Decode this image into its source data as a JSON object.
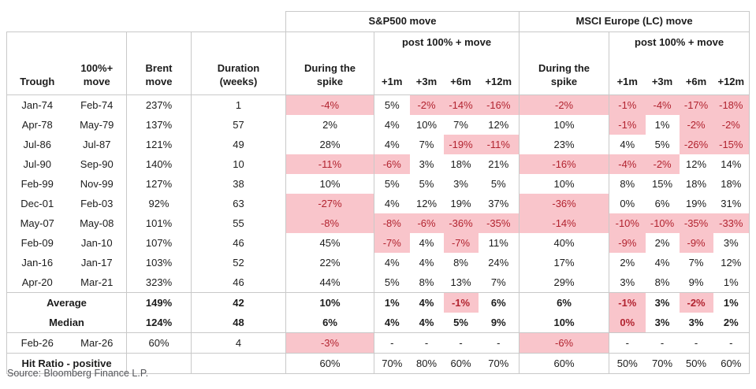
{
  "source": "Source: Bloomberg Finance L.P.",
  "colors": {
    "highlight_bg": "#f9c5cb",
    "highlight_text": "#b22430",
    "border": "#c9c9c9",
    "text": "#1c1c1c",
    "source_text": "#55565a"
  },
  "chart_data": {
    "type": "table",
    "groups": [
      "S&P500 move",
      "MSCI Europe (LC) move"
    ],
    "headers": {
      "trough": "Trough",
      "move": "100%+\nmove",
      "brent": "Brent\nmove",
      "duration": "Duration\n(weeks)",
      "during": "During the\nspike",
      "post": "post 100% + move",
      "horizons": [
        "+1m",
        "+3m",
        "+6m",
        "+12m"
      ]
    },
    "rows": [
      {
        "lead": [
          "Jan-74",
          "Feb-74"
        ],
        "cells": [
          {
            "v": "237%"
          },
          {
            "v": "1"
          },
          {
            "v": "-4%",
            "hl": true
          },
          {
            "v": "5%"
          },
          {
            "v": "-2%",
            "hl": true
          },
          {
            "v": "-14%",
            "hl": true
          },
          {
            "v": "-16%",
            "hl": true
          },
          {
            "v": "-2%",
            "hl": true
          },
          {
            "v": "-1%",
            "hl": true
          },
          {
            "v": "-4%",
            "hl": true
          },
          {
            "v": "-17%",
            "hl": true
          },
          {
            "v": "-18%",
            "hl": true
          }
        ]
      },
      {
        "lead": [
          "Apr-78",
          "May-79"
        ],
        "cells": [
          {
            "v": "137%"
          },
          {
            "v": "57"
          },
          {
            "v": "2%"
          },
          {
            "v": "4%"
          },
          {
            "v": "10%"
          },
          {
            "v": "7%"
          },
          {
            "v": "12%"
          },
          {
            "v": "10%"
          },
          {
            "v": "-1%",
            "hl": true
          },
          {
            "v": "1%"
          },
          {
            "v": "-2%",
            "hl": true
          },
          {
            "v": "-2%",
            "hl": true
          }
        ]
      },
      {
        "lead": [
          "Jul-86",
          "Jul-87"
        ],
        "cells": [
          {
            "v": "121%"
          },
          {
            "v": "49"
          },
          {
            "v": "28%"
          },
          {
            "v": "4%"
          },
          {
            "v": "7%"
          },
          {
            "v": "-19%",
            "hl": true
          },
          {
            "v": "-11%",
            "hl": true
          },
          {
            "v": "23%"
          },
          {
            "v": "4%"
          },
          {
            "v": "5%"
          },
          {
            "v": "-26%",
            "hl": true
          },
          {
            "v": "-15%",
            "hl": true
          }
        ]
      },
      {
        "lead": [
          "Jul-90",
          "Sep-90"
        ],
        "cells": [
          {
            "v": "140%"
          },
          {
            "v": "10"
          },
          {
            "v": "-11%",
            "hl": true
          },
          {
            "v": "-6%",
            "hl": true
          },
          {
            "v": "3%"
          },
          {
            "v": "18%"
          },
          {
            "v": "21%"
          },
          {
            "v": "-16%",
            "hl": true
          },
          {
            "v": "-4%",
            "hl": true
          },
          {
            "v": "-2%",
            "hl": true
          },
          {
            "v": "12%"
          },
          {
            "v": "14%"
          }
        ]
      },
      {
        "lead": [
          "Feb-99",
          "Nov-99"
        ],
        "cells": [
          {
            "v": "127%"
          },
          {
            "v": "38"
          },
          {
            "v": "10%"
          },
          {
            "v": "5%"
          },
          {
            "v": "5%"
          },
          {
            "v": "3%"
          },
          {
            "v": "5%"
          },
          {
            "v": "10%"
          },
          {
            "v": "8%"
          },
          {
            "v": "15%"
          },
          {
            "v": "18%"
          },
          {
            "v": "18%"
          }
        ]
      },
      {
        "lead": [
          "Dec-01",
          "Feb-03"
        ],
        "cells": [
          {
            "v": "92%"
          },
          {
            "v": "63"
          },
          {
            "v": "-27%",
            "hl": true
          },
          {
            "v": "4%"
          },
          {
            "v": "12%"
          },
          {
            "v": "19%"
          },
          {
            "v": "37%"
          },
          {
            "v": "-36%",
            "hl": true
          },
          {
            "v": "0%"
          },
          {
            "v": "6%"
          },
          {
            "v": "19%"
          },
          {
            "v": "31%"
          }
        ]
      },
      {
        "lead": [
          "May-07",
          "May-08"
        ],
        "cells": [
          {
            "v": "101%"
          },
          {
            "v": "55"
          },
          {
            "v": "-8%",
            "hl": true
          },
          {
            "v": "-8%",
            "hl": true
          },
          {
            "v": "-6%",
            "hl": true
          },
          {
            "v": "-36%",
            "hl": true
          },
          {
            "v": "-35%",
            "hl": true
          },
          {
            "v": "-14%",
            "hl": true
          },
          {
            "v": "-10%",
            "hl": true
          },
          {
            "v": "-10%",
            "hl": true
          },
          {
            "v": "-35%",
            "hl": true
          },
          {
            "v": "-33%",
            "hl": true
          }
        ]
      },
      {
        "lead": [
          "Feb-09",
          "Jan-10"
        ],
        "cells": [
          {
            "v": "107%"
          },
          {
            "v": "46"
          },
          {
            "v": "45%"
          },
          {
            "v": "-7%",
            "hl": true
          },
          {
            "v": "4%"
          },
          {
            "v": "-7%",
            "hl": true
          },
          {
            "v": "11%"
          },
          {
            "v": "40%"
          },
          {
            "v": "-9%",
            "hl": true
          },
          {
            "v": "2%"
          },
          {
            "v": "-9%",
            "hl": true
          },
          {
            "v": "3%"
          }
        ]
      },
      {
        "lead": [
          "Jan-16",
          "Jan-17"
        ],
        "cells": [
          {
            "v": "103%"
          },
          {
            "v": "52"
          },
          {
            "v": "22%"
          },
          {
            "v": "4%"
          },
          {
            "v": "4%"
          },
          {
            "v": "8%"
          },
          {
            "v": "24%"
          },
          {
            "v": "17%"
          },
          {
            "v": "2%"
          },
          {
            "v": "4%"
          },
          {
            "v": "7%"
          },
          {
            "v": "12%"
          }
        ]
      },
      {
        "lead": [
          "Apr-20",
          "Mar-21"
        ],
        "cells": [
          {
            "v": "323%"
          },
          {
            "v": "46"
          },
          {
            "v": "44%"
          },
          {
            "v": "5%"
          },
          {
            "v": "8%"
          },
          {
            "v": "13%"
          },
          {
            "v": "7%"
          },
          {
            "v": "29%"
          },
          {
            "v": "3%"
          },
          {
            "v": "8%"
          },
          {
            "v": "9%"
          },
          {
            "v": "1%"
          }
        ]
      },
      {
        "label": "Average",
        "bold": true,
        "section_top": true,
        "cells": [
          {
            "v": "149%"
          },
          {
            "v": "42"
          },
          {
            "v": "10%"
          },
          {
            "v": "1%"
          },
          {
            "v": "4%"
          },
          {
            "v": "-1%",
            "hl": true
          },
          {
            "v": "6%"
          },
          {
            "v": "6%"
          },
          {
            "v": "-1%",
            "hl": true
          },
          {
            "v": "3%"
          },
          {
            "v": "-2%",
            "hl": true
          },
          {
            "v": "1%"
          }
        ]
      },
      {
        "label": "Median",
        "bold": true,
        "cells": [
          {
            "v": "124%"
          },
          {
            "v": "48"
          },
          {
            "v": "6%"
          },
          {
            "v": "4%"
          },
          {
            "v": "4%"
          },
          {
            "v": "5%"
          },
          {
            "v": "9%"
          },
          {
            "v": "10%"
          },
          {
            "v": "0%",
            "hl": true
          },
          {
            "v": "3%"
          },
          {
            "v": "3%"
          },
          {
            "v": "2%"
          }
        ]
      },
      {
        "lead": [
          "Feb-26",
          "Mar-26"
        ],
        "section_top": true,
        "cells": [
          {
            "v": "60%"
          },
          {
            "v": "4"
          },
          {
            "v": "-3%",
            "hl": true
          },
          {
            "v": "-"
          },
          {
            "v": "-"
          },
          {
            "v": "-"
          },
          {
            "v": "-"
          },
          {
            "v": "-6%",
            "hl": true
          },
          {
            "v": "-"
          },
          {
            "v": "-"
          },
          {
            "v": "-"
          },
          {
            "v": "-"
          }
        ]
      },
      {
        "label": "Hit Ratio - positive",
        "label_bold": true,
        "section_top": true,
        "cells": [
          {
            "v": ""
          },
          {
            "v": ""
          },
          {
            "v": "60%"
          },
          {
            "v": "70%"
          },
          {
            "v": "80%"
          },
          {
            "v": "60%"
          },
          {
            "v": "70%"
          },
          {
            "v": "60%"
          },
          {
            "v": "50%"
          },
          {
            "v": "70%"
          },
          {
            "v": "50%"
          },
          {
            "v": "60%"
          }
        ]
      }
    ]
  }
}
